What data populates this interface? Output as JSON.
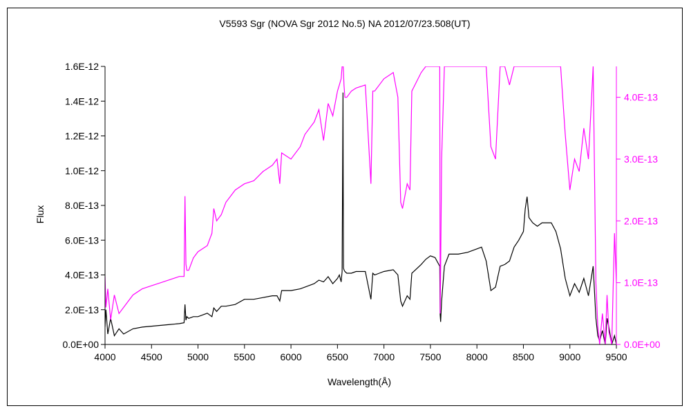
{
  "chart_data": {
    "type": "line",
    "title": "V5593 Sgr (NOVA Sgr 2012 No.5)    NA    2012/07/23.508(UT)",
    "xlabel": "Wavelength(Å)",
    "ylabel": "Flux",
    "xlim": [
      4000,
      9500
    ],
    "ylim": [
      0,
      1.6e-12
    ],
    "y2lim": [
      0,
      4.5e-13
    ],
    "grid": false,
    "legend": "none",
    "x_ticks": [
      "4000",
      "4500",
      "5000",
      "5500",
      "6000",
      "6500",
      "7000",
      "7500",
      "8000",
      "8500",
      "9000",
      "9500"
    ],
    "y_ticks": [
      "0.0E+00",
      "2.0E-13",
      "4.0E-13",
      "6.0E-13",
      "8.0E-13",
      "1.0E-12",
      "1.2E-12",
      "1.4E-12",
      "1.6E-12"
    ],
    "y2_ticks": [
      "0.0E+00",
      "1.0E-13",
      "2.0E-13",
      "3.0E-13",
      "4.0E-13"
    ],
    "series": [
      {
        "axis": "left",
        "color": "#000000",
        "x": [
          4000,
          4010,
          4030,
          4060,
          4100,
          4150,
          4200,
          4300,
          4400,
          4500,
          4600,
          4700,
          4800,
          4850,
          4860,
          4870,
          4880,
          4900,
          4950,
          5000,
          5050,
          5100,
          5150,
          5170,
          5200,
          5250,
          5300,
          5400,
          5500,
          5600,
          5700,
          5800,
          5850,
          5880,
          5900,
          6000,
          6100,
          6150,
          6200,
          6250,
          6300,
          6350,
          6400,
          6450,
          6500,
          6520,
          6540,
          6550,
          6560,
          6562,
          6565,
          6570,
          6580,
          6600,
          6650,
          6700,
          6800,
          6860,
          6880,
          6900,
          6950,
          7000,
          7100,
          7150,
          7180,
          7200,
          7250,
          7280,
          7300,
          7400,
          7450,
          7500,
          7550,
          7600,
          7605,
          7610,
          7620,
          7650,
          7700,
          7750,
          7800,
          7900,
          8000,
          8050,
          8100,
          8150,
          8200,
          8250,
          8300,
          8350,
          8400,
          8450,
          8500,
          8520,
          8540,
          8560,
          8600,
          8650,
          8700,
          8750,
          8800,
          8850,
          8900,
          8950,
          9000,
          9050,
          9100,
          9150,
          9200,
          9250,
          9280,
          9300,
          9320,
          9350,
          9380,
          9400,
          9420,
          9450,
          9480,
          9500
        ],
        "values": [
          1e-13,
          2e-13,
          6e-14,
          1.5e-13,
          5e-14,
          9e-14,
          6e-14,
          9e-14,
          1e-13,
          1.05e-13,
          1.1e-13,
          1.15e-13,
          1.2e-13,
          1.25e-13,
          2.3e-13,
          1.4e-13,
          1.6e-13,
          1.5e-13,
          1.6e-13,
          1.6e-13,
          1.7e-13,
          1.8e-13,
          1.6e-13,
          2.1e-13,
          1.9e-13,
          2.2e-13,
          2.2e-13,
          2.3e-13,
          2.6e-13,
          2.6e-13,
          2.7e-13,
          2.8e-13,
          2.8e-13,
          2.5e-13,
          3.1e-13,
          3.1e-13,
          3.2e-13,
          3.3e-13,
          3.4e-13,
          3.5e-13,
          3.7e-13,
          3.6e-13,
          3.9e-13,
          3.5e-13,
          3.8e-13,
          4e-13,
          3.6e-13,
          4.2e-13,
          1.45e-12,
          9e-13,
          4.4e-13,
          4.3e-13,
          4.2e-13,
          4.1e-13,
          4.1e-13,
          4.2e-13,
          4.2e-13,
          2.6e-13,
          4.1e-13,
          4e-13,
          4.1e-13,
          4.2e-13,
          4.3e-13,
          4e-13,
          2.5e-13,
          2.2e-13,
          2.8e-13,
          2.6e-13,
          4.1e-13,
          4.6e-13,
          4.9e-13,
          5.1e-13,
          5e-13,
          4.5e-13,
          1.7e-13,
          1.3e-13,
          2.5e-13,
          4.5e-13,
          5.2e-13,
          5.2e-13,
          5.2e-13,
          5.3e-13,
          5.5e-13,
          5.6e-13,
          4.8e-13,
          3.1e-13,
          3.3e-13,
          4.5e-13,
          4.6e-13,
          4.8e-13,
          5.6e-13,
          6e-13,
          6.5e-13,
          7.8e-13,
          8.5e-13,
          7.3e-13,
          7e-13,
          6.8e-13,
          7e-13,
          7e-13,
          7e-13,
          6.5e-13,
          5.5e-13,
          3.8e-13,
          2.8e-13,
          3.5e-13,
          3e-13,
          3.8e-13,
          2.8e-13,
          4.5e-13,
          1.5e-13,
          5e-14,
          2e-14,
          8e-14,
          0.0,
          1.5e-13,
          1e-13,
          0.0,
          5e-14,
          0.0
        ]
      },
      {
        "axis": "right",
        "color": "#ff00ff",
        "x": [
          4000,
          4010,
          4030,
          4060,
          4100,
          4150,
          4200,
          4300,
          4400,
          4500,
          4600,
          4700,
          4800,
          4850,
          4860,
          4870,
          4880,
          4900,
          4950,
          5000,
          5050,
          5100,
          5150,
          5170,
          5200,
          5250,
          5300,
          5400,
          5500,
          5600,
          5700,
          5800,
          5850,
          5880,
          5900,
          6000,
          6100,
          6150,
          6200,
          6250,
          6300,
          6350,
          6400,
          6450,
          6500,
          6520,
          6540,
          6550,
          6560,
          6562,
          6565,
          6570,
          6580,
          6600,
          6650,
          6700,
          6800,
          6860,
          6880,
          6900,
          6950,
          7000,
          7100,
          7150,
          7180,
          7200,
          7250,
          7280,
          7300,
          7400,
          7450,
          7500,
          7550,
          7600,
          7605,
          7610,
          7620,
          7650,
          7700,
          7750,
          7800,
          7900,
          8000,
          8050,
          8100,
          8150,
          8200,
          8250,
          8300,
          8350,
          8400,
          8450,
          8500,
          8520,
          8540,
          8560,
          8600,
          8650,
          8700,
          8750,
          8800,
          8850,
          8900,
          8950,
          9000,
          9050,
          9100,
          9150,
          9200,
          9250,
          9280,
          9300,
          9320,
          9350,
          9380,
          9400,
          9420,
          9450,
          9480,
          9500
        ],
        "values": [
          1.1e-13,
          6e-14,
          9e-14,
          4e-14,
          8e-14,
          5e-14,
          6e-14,
          8e-14,
          9e-14,
          9.5e-14,
          1e-13,
          1.05e-13,
          1.1e-13,
          1.1e-13,
          2.4e-13,
          1.3e-13,
          1.2e-13,
          1.2e-13,
          1.4e-13,
          1.5e-13,
          1.55e-13,
          1.6e-13,
          1.8e-13,
          2.2e-13,
          2e-13,
          2.1e-13,
          2.3e-13,
          2.5e-13,
          2.6e-13,
          2.65e-13,
          2.8e-13,
          2.9e-13,
          3e-13,
          2.6e-13,
          3.1e-13,
          3e-13,
          3.2e-13,
          3.4e-13,
          3.5e-13,
          3.6e-13,
          3.8e-13,
          3.3e-13,
          3.9e-13,
          3.7e-13,
          4.1e-13,
          4.2e-13,
          4.3e-13,
          4.5e-13,
          4.5e-13,
          4.5e-13,
          4.4e-13,
          4.2e-13,
          4e-13,
          4e-13,
          4.1e-13,
          4.15e-13,
          4.2e-13,
          2.6e-13,
          4.1e-13,
          4.1e-13,
          4.2e-13,
          4.3e-13,
          4.4e-13,
          4e-13,
          2.3e-13,
          2.2e-13,
          2.6e-13,
          2.5e-13,
          4.1e-13,
          4.4e-13,
          4.5e-13,
          4.5e-13,
          4.5e-13,
          4.5e-13,
          5e-14,
          1.2e-13,
          3e-13,
          4.5e-13,
          4.5e-13,
          4.5e-13,
          4.5e-13,
          4.5e-13,
          4.5e-13,
          4.5e-13,
          4.5e-13,
          3.2e-13,
          3e-13,
          4.5e-13,
          4.5e-13,
          4.2e-13,
          4.5e-13,
          4.5e-13,
          4.5e-13,
          4.5e-13,
          4.5e-13,
          4.5e-13,
          4.5e-13,
          4.5e-13,
          4.5e-13,
          4.5e-13,
          4.5e-13,
          4.5e-13,
          4.5e-13,
          3.4e-13,
          2.5e-13,
          3e-13,
          2.8e-13,
          3.5e-13,
          3e-13,
          4.5e-13,
          1e-13,
          3e-14,
          0.0,
          5e-14,
          0.0,
          8e-14,
          2e-14,
          0.0,
          1.8e-13,
          1e-13
        ]
      }
    ]
  }
}
